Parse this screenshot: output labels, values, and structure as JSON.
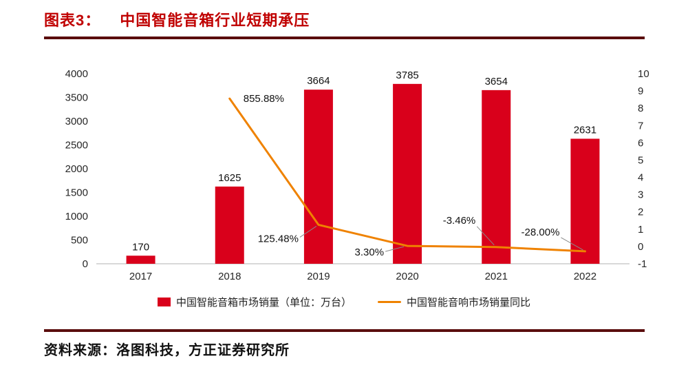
{
  "header": {
    "title_prefix": "图表3：",
    "title": "中国智能音箱行业短期承压"
  },
  "chart_data": {
    "type": "bar",
    "subtype": "bar+line combo, dual axis",
    "categories": [
      "2017",
      "2018",
      "2019",
      "2020",
      "2021",
      "2022"
    ],
    "series": [
      {
        "name": "中国智能音箱市场销量（单位：万台）",
        "type": "bar",
        "axis": "left",
        "color": "#d9001b",
        "values": [
          170,
          1625,
          3664,
          3785,
          3654,
          2631
        ]
      },
      {
        "name": "中国智能音响市场销量同比",
        "type": "line",
        "axis": "right",
        "color": "#ef8200",
        "values": [
          null,
          8.5588,
          1.2548,
          0.033,
          -0.0346,
          -0.28
        ],
        "labels": [
          null,
          "855.88%",
          "125.48%",
          "3.30%",
          "-3.46%",
          "-28.00%"
        ]
      }
    ],
    "left_axis": {
      "min": 0,
      "max": 4000,
      "step": 500,
      "ticks": [
        "0",
        "500",
        "1000",
        "1500",
        "2000",
        "2500",
        "3000",
        "3500",
        "4000"
      ]
    },
    "right_axis": {
      "min": -1,
      "max": 10,
      "step": 1,
      "ticks": [
        "-1",
        "0",
        "1",
        "2",
        "3",
        "4",
        "5",
        "6",
        "7",
        "8",
        "9",
        "10"
      ]
    },
    "grid": false,
    "legend_position": "bottom",
    "title": "中国智能音箱行业短期承压"
  },
  "footer": {
    "source": "资料来源：洛图科技，方正证券研究所"
  },
  "colors": {
    "bar": "#d9001b",
    "line": "#ef8200",
    "title": "#c00000",
    "divider": "#5a0d0d",
    "axis_line": "#b0b0b0",
    "leader_line": "#8a8a8a"
  }
}
